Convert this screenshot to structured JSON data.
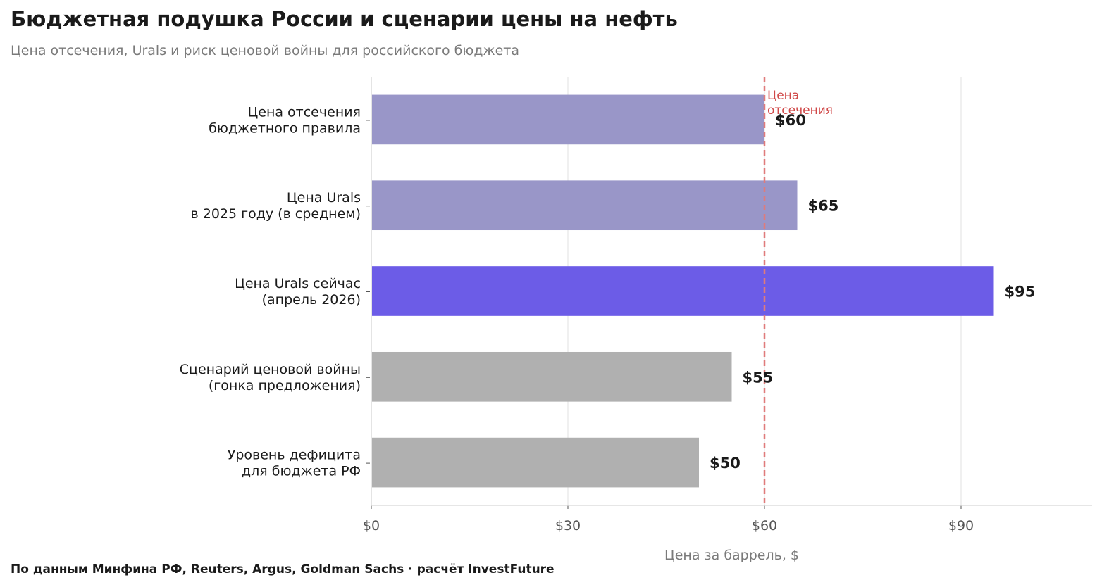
{
  "header": {
    "title": "Бюджетная подушка России и сценарии цены на нефть",
    "subtitle": "Цена отсечения, Urals и риск ценовой войны для российского бюджета"
  },
  "footer": {
    "source": "По данным Минфина РФ, Reuters, Argus, Goldman Sachs · расчёт InvestFuture"
  },
  "chart_data": {
    "type": "bar",
    "orientation": "horizontal",
    "categories": [
      [
        "Цена отсечения",
        "бюджетного правила"
      ],
      [
        "Цена Urals",
        "в 2025 году (в среднем)"
      ],
      [
        "Цена Urals сейчас",
        "(апрель 2026)"
      ],
      [
        "Сценарий ценовой войны",
        "(гонка предложения)"
      ],
      [
        "Уровень дефицита",
        "для бюджета РФ"
      ]
    ],
    "values": [
      60,
      65,
      95,
      55,
      50
    ],
    "value_labels": [
      "$60",
      "$65",
      "$95",
      "$55",
      "$50"
    ],
    "bar_colors": [
      "#9996c8",
      "#9996c8",
      "#6c5ce7",
      "#b0b0b0",
      "#b0b0b0"
    ],
    "xlabel": "Цена за баррель, $",
    "ylabel": "",
    "xlim": [
      0,
      110
    ],
    "xticks": [
      0,
      30,
      60,
      90
    ],
    "xtick_labels": [
      "$0",
      "$30",
      "$60",
      "$90"
    ],
    "grid": "vertical",
    "reference_line": {
      "value": 60,
      "label": [
        "Цена",
        "отсечения"
      ],
      "color": "#e07b7b",
      "label_color": "#d04848",
      "style": "dashed"
    }
  }
}
